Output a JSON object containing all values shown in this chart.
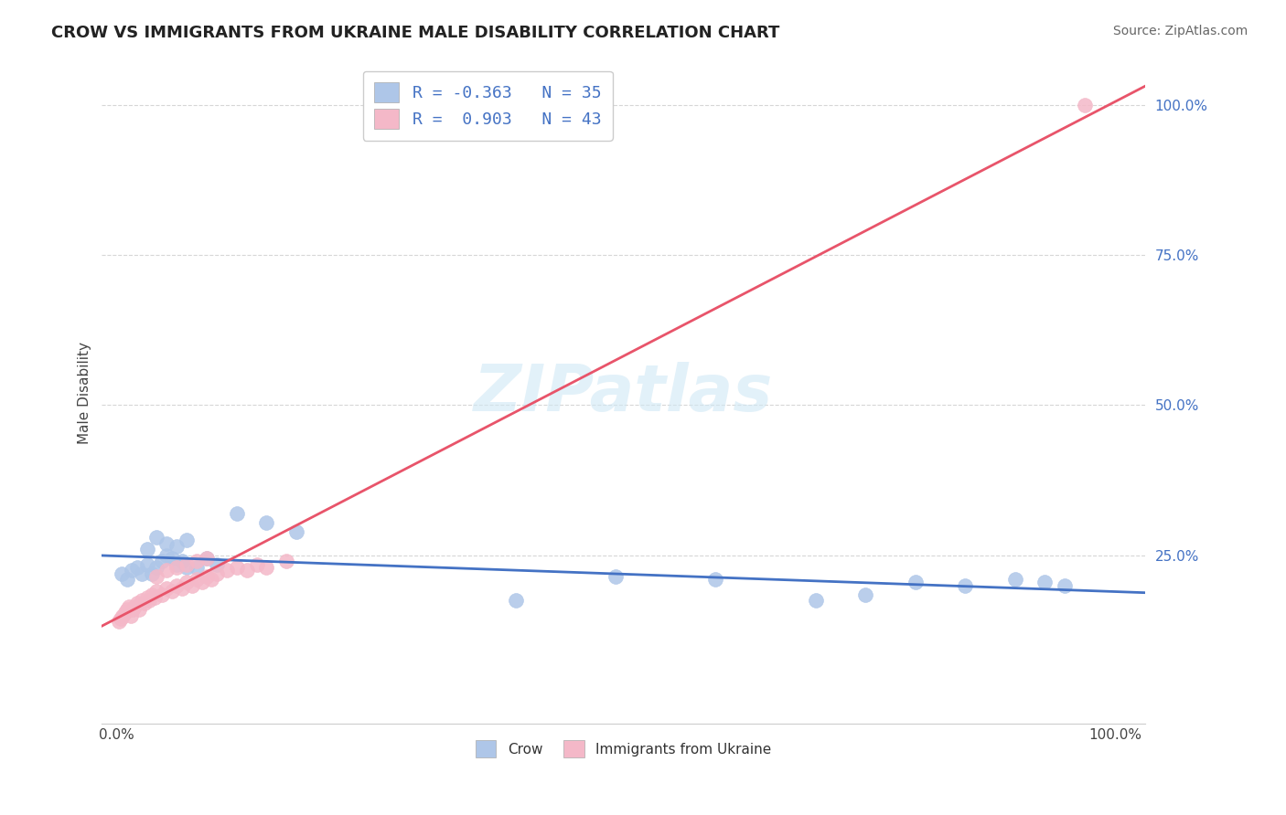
{
  "title": "CROW VS IMMIGRANTS FROM UKRAINE MALE DISABILITY CORRELATION CHART",
  "source": "Source: ZipAtlas.com",
  "ylabel_label": "Male Disability",
  "crow_x": [
    0.5,
    1.0,
    1.5,
    2.0,
    2.5,
    3.0,
    3.5,
    4.0,
    4.5,
    5.0,
    5.5,
    6.0,
    6.5,
    7.0,
    8.0,
    9.0,
    10.0,
    12.0,
    15.0,
    18.0,
    40.0,
    50.0,
    60.0,
    70.0,
    75.0,
    80.0,
    85.0,
    90.0,
    93.0,
    95.0,
    3.0,
    4.0,
    5.0,
    6.0,
    7.0
  ],
  "crow_y": [
    22.0,
    21.0,
    22.5,
    23.0,
    22.0,
    23.5,
    22.0,
    23.0,
    24.0,
    25.0,
    24.5,
    23.5,
    24.0,
    23.0,
    23.0,
    24.5,
    23.5,
    32.0,
    30.5,
    29.0,
    17.5,
    21.5,
    21.0,
    17.5,
    18.5,
    20.5,
    20.0,
    21.0,
    20.5,
    20.0,
    26.0,
    28.0,
    27.0,
    26.5,
    27.5
  ],
  "ukr_x": [
    0.2,
    0.4,
    0.6,
    0.8,
    1.0,
    1.2,
    1.4,
    1.6,
    1.8,
    2.0,
    2.2,
    2.5,
    2.8,
    3.0,
    3.2,
    3.5,
    3.8,
    4.0,
    4.5,
    5.0,
    5.5,
    6.0,
    6.5,
    7.0,
    7.5,
    8.0,
    8.5,
    9.0,
    9.5,
    10.0,
    11.0,
    12.0,
    13.0,
    14.0,
    15.0,
    17.0,
    4.0,
    5.0,
    6.0,
    7.0,
    8.0,
    9.0,
    97.0
  ],
  "ukr_y": [
    14.0,
    14.5,
    15.0,
    15.5,
    16.0,
    16.5,
    15.0,
    16.0,
    16.5,
    17.0,
    16.0,
    17.5,
    17.0,
    18.0,
    17.5,
    18.5,
    18.0,
    19.0,
    18.5,
    19.5,
    19.0,
    20.0,
    19.5,
    20.5,
    20.0,
    21.0,
    20.5,
    21.5,
    21.0,
    22.0,
    22.5,
    23.0,
    22.5,
    23.5,
    23.0,
    24.0,
    21.5,
    22.5,
    23.0,
    23.5,
    24.0,
    24.5,
    100.0
  ],
  "crow_color_dot": "#aec6e8",
  "crow_color_line": "#4472c4",
  "ukr_color_dot": "#f4b8c8",
  "ukr_color_line": "#e8546a",
  "watermark_text": "ZIPatlas",
  "watermark_color": "#d0e8f5",
  "background_color": "#ffffff",
  "grid_color": "#cccccc",
  "title_fontsize": 13,
  "source_fontsize": 10,
  "ylabel_fontsize": 11,
  "tick_fontsize": 11,
  "legend_fontsize": 13,
  "xlim": [
    0,
    100
  ],
  "ylim": [
    0,
    100
  ],
  "yticks": [
    25,
    50,
    75,
    100
  ],
  "xticks": [
    0,
    100
  ]
}
